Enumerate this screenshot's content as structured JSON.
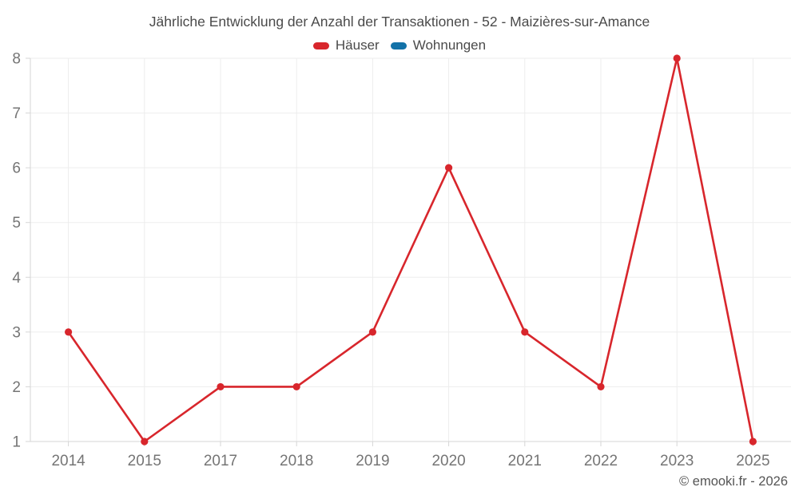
{
  "chart_data": {
    "type": "line",
    "title": "Jährliche Entwicklung der Anzahl der Transaktionen - 52 - Maizières-sur-Amance",
    "categories": [
      "2014",
      "2015",
      "2017",
      "2018",
      "2019",
      "2020",
      "2021",
      "2022",
      "2023",
      "2025"
    ],
    "series": [
      {
        "name": "Häuser",
        "color": "#d8262c",
        "values": [
          3,
          1,
          2,
          2,
          3,
          6,
          3,
          2,
          8,
          1
        ]
      },
      {
        "name": "Wohnungen",
        "color": "#1372a8",
        "values": []
      }
    ],
    "xlabel": "",
    "ylabel": "",
    "ylim": [
      1,
      8
    ],
    "yticks": [
      1,
      2,
      3,
      4,
      5,
      6,
      7,
      8
    ],
    "grid": true,
    "legend_position": "top",
    "marker_radius": 4.6,
    "line_width": 2.6
  },
  "footer": {
    "watermark": "© emooki.fr - 2026"
  },
  "colors": {
    "background": "#ffffff",
    "gridline": "#ededed",
    "axis": "#d6d6d6",
    "tick_text": "#757575",
    "title_text": "#4a4a4a",
    "watermark_text": "#555555"
  }
}
